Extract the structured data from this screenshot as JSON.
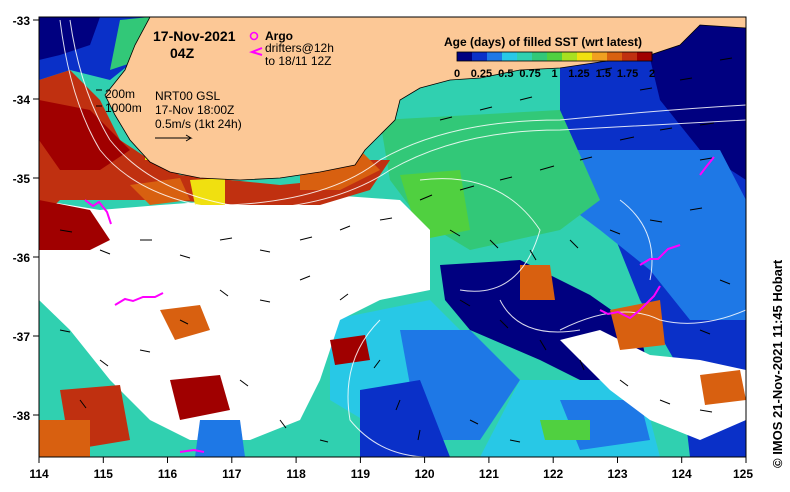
{
  "title": {
    "date": "17-Nov-2021",
    "hour": "04Z"
  },
  "legend": {
    "argo_label": "Argo",
    "argo_color": "#ff00ff",
    "drifters_label": "drifters@12h",
    "drifters_range": "to 18/11 12Z",
    "drifter_color": "#ff00ff"
  },
  "contours": {
    "label_200m": "200m",
    "label_1000m": "1000m"
  },
  "product": {
    "line1": "NRT00 GSL",
    "line2": "17-Nov 18:00Z",
    "line3": "0.5m/s (1kt 24h)"
  },
  "colorbar": {
    "title": "Age (days) of filled SST (wrt latest)",
    "ticks": [
      "0",
      "0.25",
      "0.5",
      "0.75",
      "1",
      "1.25",
      "1.5",
      "1.75",
      "2"
    ],
    "colors": [
      "#000080",
      "#0a30c8",
      "#1e78e6",
      "#28c8e6",
      "#30d0b0",
      "#32c878",
      "#50d040",
      "#a8e020",
      "#f0e010",
      "#f0a020",
      "#d86010",
      "#c03010",
      "#a00000"
    ]
  },
  "axes": {
    "lon_ticks": [
      "114",
      "115",
      "116",
      "117",
      "118",
      "119",
      "120",
      "121",
      "122",
      "123",
      "124",
      "125"
    ],
    "lat_ticks": [
      "-33",
      "-34",
      "-35",
      "-36",
      "-37",
      "-38"
    ]
  },
  "land_color": "#fcc896",
  "credit": "© IMOS 21-Nov-2021 11:45 Hobart"
}
